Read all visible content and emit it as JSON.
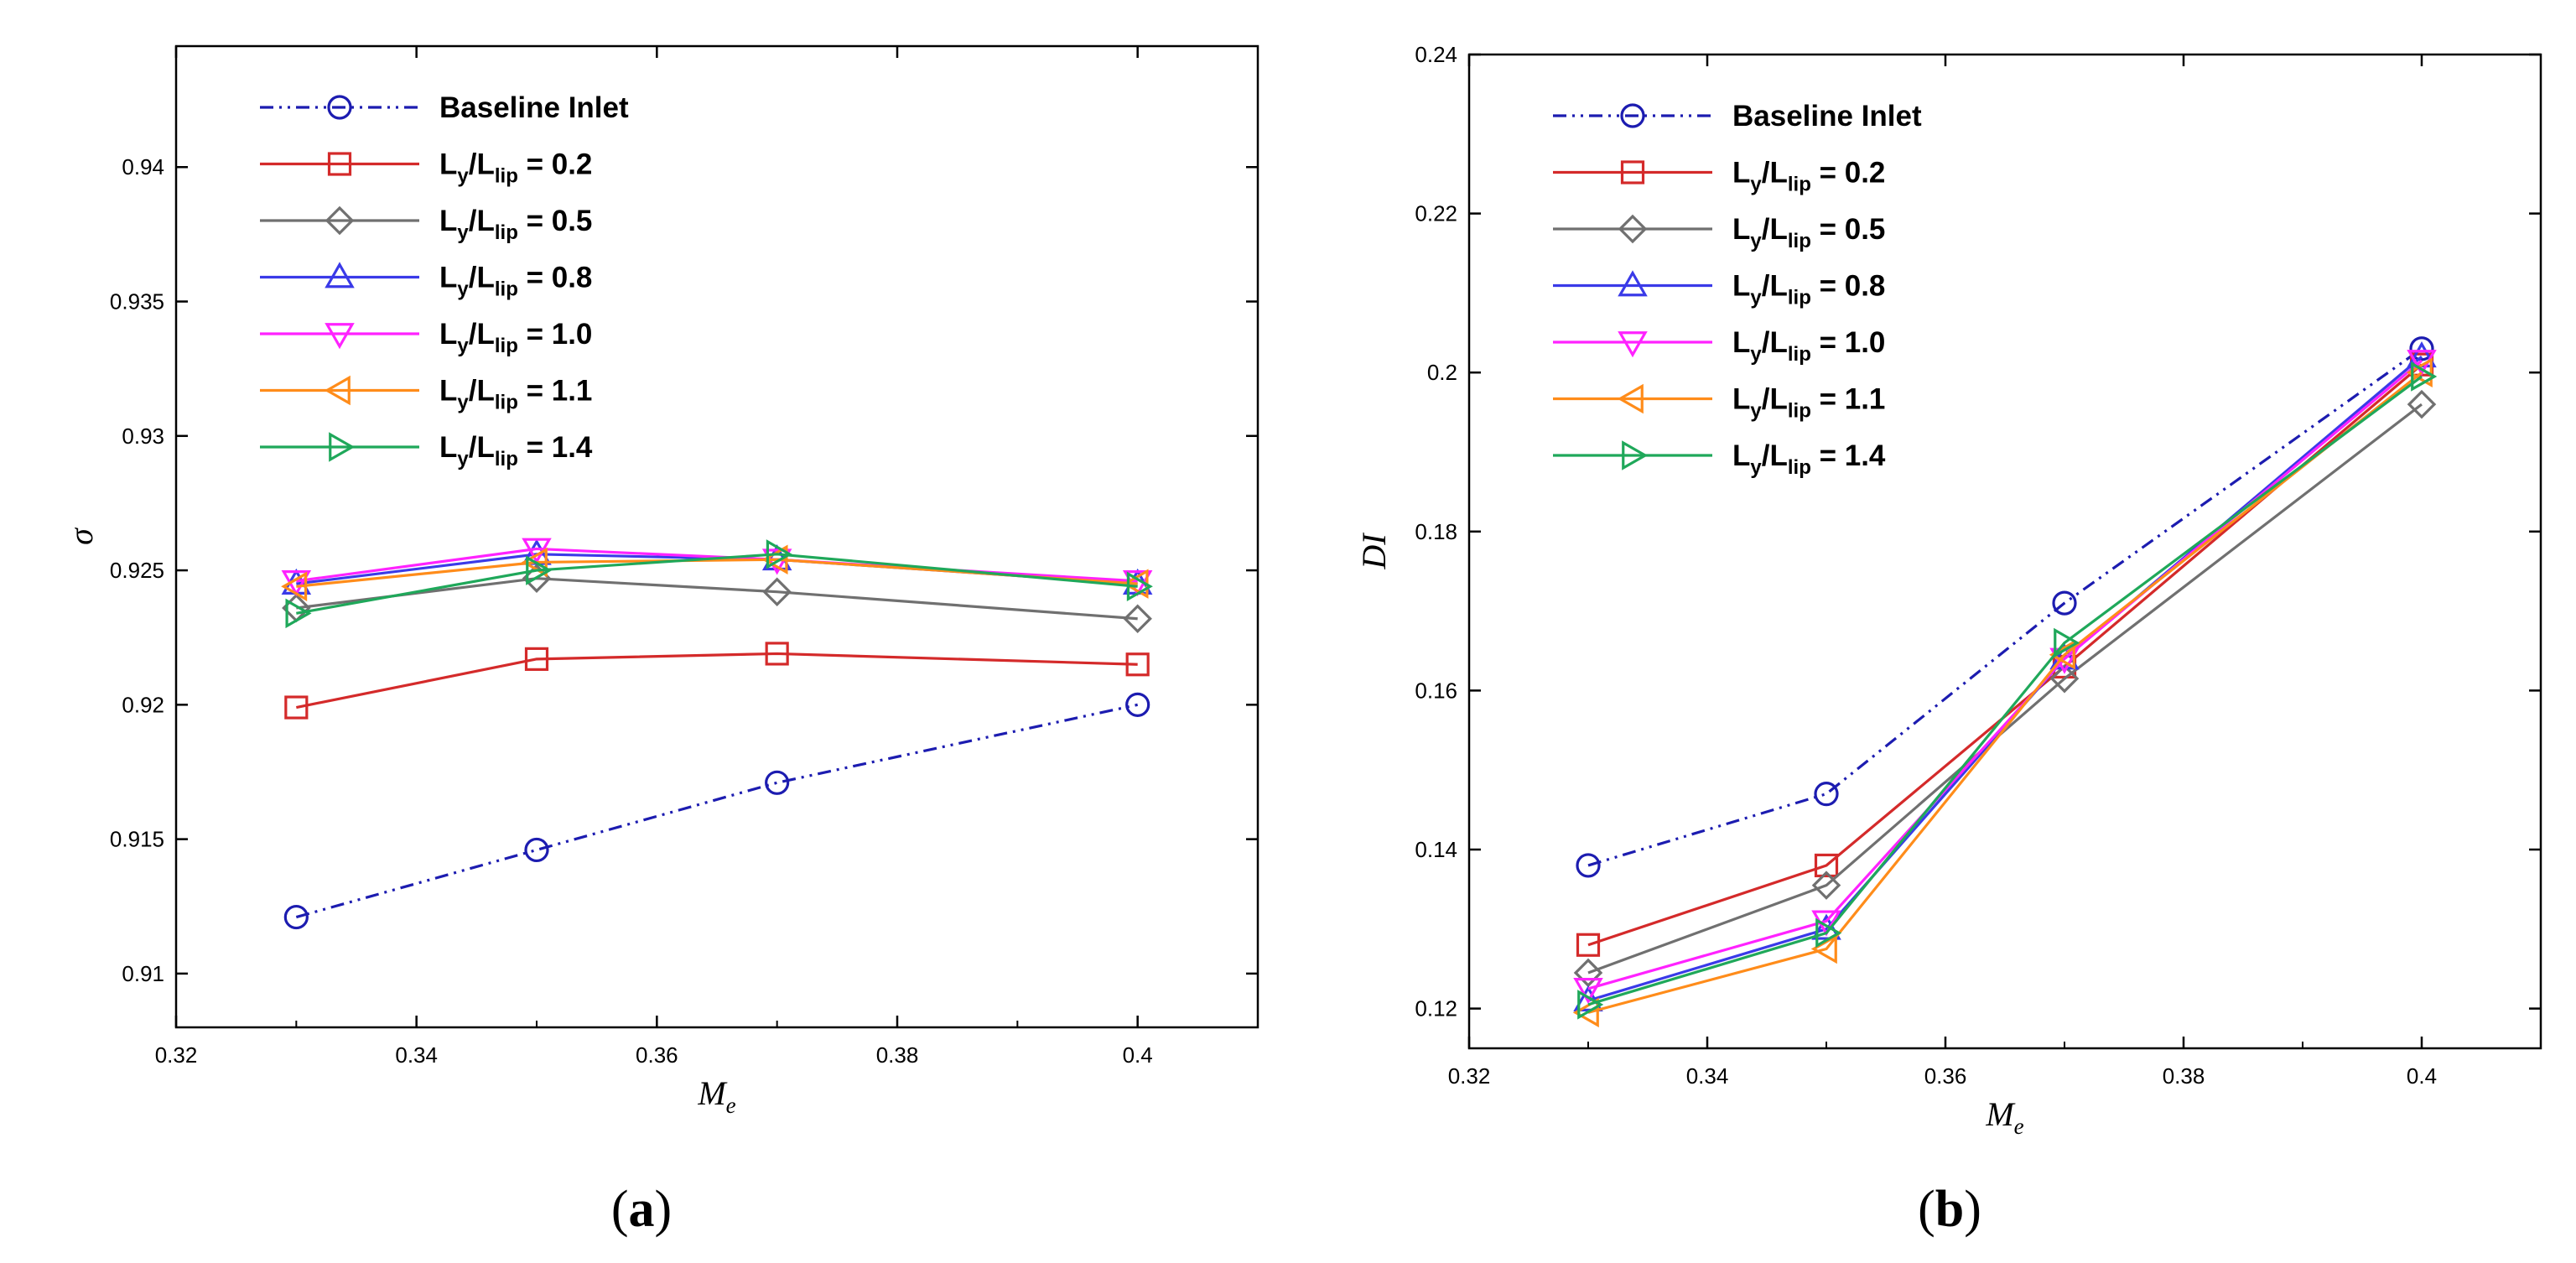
{
  "colors": {
    "baseline": "#1c1cb0",
    "r02": "#d42a2a",
    "r05": "#707070",
    "r08": "#3a3ae8",
    "r10": "#ff22ff",
    "r11": "#ff8c1a",
    "r14": "#1fa85a"
  },
  "chart_data": [
    {
      "type": "line",
      "panel_label": {
        "open": "(",
        "letter": "a",
        "close": ")"
      },
      "xlabel": {
        "main": "M",
        "sub": "e"
      },
      "ylabel": {
        "main": "σ",
        "sub": ""
      },
      "xlim": [
        0.32,
        0.41
      ],
      "ylim": [
        0.908,
        0.9445
      ],
      "x_ticks": [
        0.32,
        0.34,
        0.36,
        0.38,
        0.4
      ],
      "x_tick_labels": [
        "0.32",
        "0.34",
        "0.36",
        "0.38",
        "0.4"
      ],
      "y_ticks": [
        0.91,
        0.915,
        0.92,
        0.925,
        0.93,
        0.935,
        0.94
      ],
      "y_tick_labels": [
        "0.91",
        "0.915",
        "0.92",
        "0.925",
        "0.93",
        "0.935",
        "0.94"
      ],
      "legend_position": "top-left",
      "x": [
        0.33,
        0.35,
        0.37,
        0.4
      ],
      "series": [
        {
          "id": "baseline",
          "label_main": "Baseline Inlet",
          "label_sub": "",
          "label_tail": "",
          "marker": "circle",
          "dash": "dashdotdot",
          "color": "#1c1cb0",
          "values": [
            0.9121,
            0.9146,
            0.9171,
            0.92
          ]
        },
        {
          "id": "r02",
          "label_main": "L",
          "label_sub": "y",
          "label_mid": "/L",
          "label_sub2": "lip",
          "label_tail": " = 0.2",
          "marker": "square",
          "dash": "solid",
          "color": "#d42a2a",
          "values": [
            0.9199,
            0.9217,
            0.9219,
            0.9215
          ]
        },
        {
          "id": "r05",
          "label_main": "L",
          "label_sub": "y",
          "label_mid": "/L",
          "label_sub2": "lip",
          "label_tail": " = 0.5",
          "marker": "diamond",
          "dash": "solid",
          "color": "#707070",
          "values": [
            0.9236,
            0.9247,
            0.9242,
            0.9232
          ]
        },
        {
          "id": "r08",
          "label_main": "L",
          "label_sub": "y",
          "label_mid": "/L",
          "label_sub2": "lip",
          "label_tail": " = 0.8",
          "marker": "triangle-up",
          "dash": "solid",
          "color": "#3a3ae8",
          "values": [
            0.9245,
            0.9256,
            0.9254,
            0.9245
          ]
        },
        {
          "id": "r10",
          "label_main": "L",
          "label_sub": "y",
          "label_mid": "/L",
          "label_sub2": "lip",
          "label_tail": " = 1.0",
          "marker": "triangle-down",
          "dash": "solid",
          "color": "#ff22ff",
          "values": [
            0.9246,
            0.9258,
            0.9254,
            0.9246
          ]
        },
        {
          "id": "r11",
          "label_main": "L",
          "label_sub": "y",
          "label_mid": "/L",
          "label_sub2": "lip",
          "label_tail": " = 1.1",
          "marker": "triangle-left",
          "dash": "solid",
          "color": "#ff8c1a",
          "values": [
            0.9244,
            0.9253,
            0.9254,
            0.9245
          ]
        },
        {
          "id": "r14",
          "label_main": "L",
          "label_sub": "y",
          "label_mid": "/L",
          "label_sub2": "lip",
          "label_tail": " = 1.4",
          "marker": "triangle-right",
          "dash": "solid",
          "color": "#1fa85a",
          "values": [
            0.9234,
            0.925,
            0.9256,
            0.9244
          ]
        }
      ]
    },
    {
      "type": "line",
      "panel_label": {
        "open": "(",
        "letter": "b",
        "close": ")"
      },
      "xlabel": {
        "main": "M",
        "sub": "e"
      },
      "ylabel": {
        "main": "DI",
        "sub": ""
      },
      "xlim": [
        0.32,
        0.41
      ],
      "ylim": [
        0.115,
        0.24
      ],
      "x_ticks": [
        0.32,
        0.34,
        0.36,
        0.38,
        0.4
      ],
      "x_tick_labels": [
        "0.32",
        "0.34",
        "0.36",
        "0.38",
        "0.4"
      ],
      "y_ticks": [
        0.12,
        0.14,
        0.16,
        0.18,
        0.2,
        0.22,
        0.24
      ],
      "y_tick_labels": [
        "0.12",
        "0.14",
        "0.16",
        "0.18",
        "0.2",
        "0.22",
        "0.24"
      ],
      "legend_position": "top-left",
      "x": [
        0.33,
        0.35,
        0.37,
        0.4
      ],
      "series": [
        {
          "id": "baseline",
          "label_main": "Baseline Inlet",
          "label_sub": "",
          "label_tail": "",
          "marker": "circle",
          "dash": "dashdotdot",
          "color": "#1c1cb0",
          "values": [
            0.138,
            0.147,
            0.171,
            0.203
          ]
        },
        {
          "id": "r02",
          "label_main": "L",
          "label_sub": "y",
          "label_mid": "/L",
          "label_sub2": "lip",
          "label_tail": " = 0.2",
          "marker": "square",
          "dash": "solid",
          "color": "#d42a2a",
          "values": [
            0.128,
            0.138,
            0.163,
            0.201
          ]
        },
        {
          "id": "r05",
          "label_main": "L",
          "label_sub": "y",
          "label_mid": "/L",
          "label_sub2": "lip",
          "label_tail": " = 0.5",
          "marker": "diamond",
          "dash": "solid",
          "color": "#707070",
          "values": [
            0.1245,
            0.1355,
            0.1615,
            0.196
          ]
        },
        {
          "id": "r08",
          "label_main": "L",
          "label_sub": "y",
          "label_mid": "/L",
          "label_sub2": "lip",
          "label_tail": " = 0.8",
          "marker": "triangle-up",
          "dash": "solid",
          "color": "#3a3ae8",
          "values": [
            0.121,
            0.13,
            0.164,
            0.202
          ]
        },
        {
          "id": "r10",
          "label_main": "L",
          "label_sub": "y",
          "label_mid": "/L",
          "label_sub2": "lip",
          "label_tail": " = 1.0",
          "marker": "triangle-down",
          "dash": "solid",
          "color": "#ff22ff",
          "values": [
            0.1225,
            0.131,
            0.164,
            0.2015
          ]
        },
        {
          "id": "r11",
          "label_main": "L",
          "label_sub": "y",
          "label_mid": "/L",
          "label_sub2": "lip",
          "label_tail": " = 1.1",
          "marker": "triangle-left",
          "dash": "solid",
          "color": "#ff8c1a",
          "values": [
            0.1195,
            0.1275,
            0.1645,
            0.2
          ]
        },
        {
          "id": "r14",
          "label_main": "L",
          "label_sub": "y",
          "label_mid": "/L",
          "label_sub2": "lip",
          "label_tail": " = 1.4",
          "marker": "triangle-right",
          "dash": "solid",
          "color": "#1fa85a",
          "values": [
            0.1205,
            0.1295,
            0.166,
            0.1995
          ]
        }
      ]
    }
  ]
}
